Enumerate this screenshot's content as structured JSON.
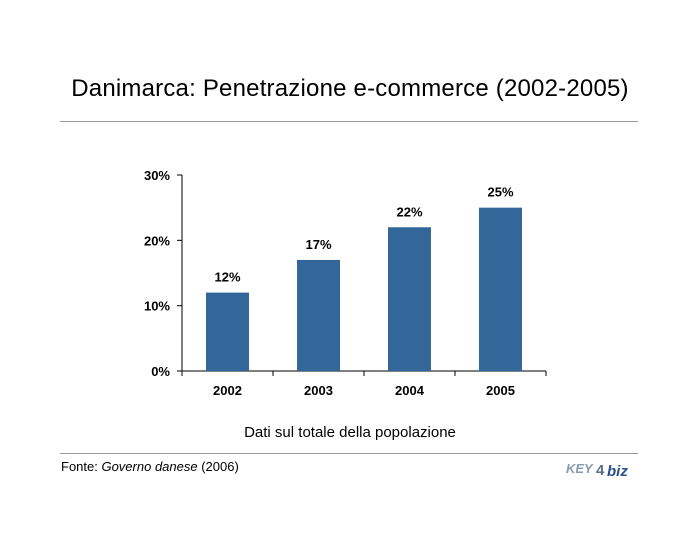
{
  "title": "Danimarca: Penetrazione e-commerce (2002-2005)",
  "caption": "Dati sul totale della popolazione",
  "source": {
    "prefix": "Fonte: ",
    "name": "Governo danese",
    "suffix": " (2006)"
  },
  "logo": {
    "text_left": "KEY",
    "text_mid": "4",
    "text_right": "biz"
  },
  "colors": {
    "bar": "#336699",
    "axis": "#000000",
    "rule": "#9a9a9a"
  },
  "chart_data": {
    "type": "bar",
    "title": "",
    "xlabel": "",
    "ylabel": "",
    "categories": [
      "2002",
      "2003",
      "2004",
      "2005"
    ],
    "values": [
      12,
      17,
      22,
      25
    ],
    "data_labels": [
      "12%",
      "17%",
      "22%",
      "25%"
    ],
    "yticks": [
      0,
      10,
      20,
      30
    ],
    "ytick_labels": [
      "0%",
      "10%",
      "20%",
      "30%"
    ],
    "ylim": [
      0,
      30
    ],
    "grid": false,
    "legend": "none"
  }
}
